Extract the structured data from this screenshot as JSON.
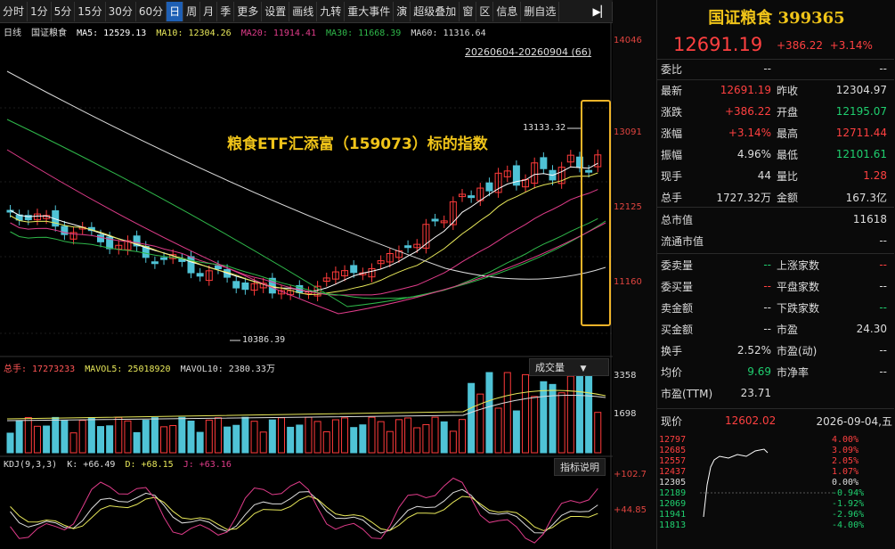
{
  "toolbar": {
    "items": [
      "分时",
      "1分",
      "5分",
      "15分",
      "30分",
      "60分",
      "日",
      "周",
      "月",
      "季",
      "更多",
      "设置",
      "画线",
      "九转",
      "重大事件",
      "演",
      "超级叠加",
      "窗",
      "区",
      "信息",
      "删自选",
      "▶▏"
    ],
    "active_index": 6
  },
  "main_chart": {
    "kline_label": "日线",
    "index_name": "国证粮食",
    "ma_labels": [
      "MA5: 12529.13",
      "MA10: 12304.26",
      "MA20: 11914.41",
      "MA30: 11668.39",
      "MA60: 11316.64"
    ],
    "ma_colors": [
      "#ffffff",
      "#e8e85a",
      "#e03c8a",
      "#2fb84a",
      "#d9d9d9"
    ],
    "date_range": "20260604-20260904 (66)",
    "price_axis": [
      "14046",
      "13091",
      "12125",
      "11160"
    ],
    "high_marker": "13133.32",
    "low_marker": "10386.39",
    "annotation": "粮食ETF汇添富（159073）标的指数",
    "up_color": "#ff3b3b",
    "down_color": "#4fc3d6",
    "highlight_color": "#f0b429"
  },
  "volume_panel": {
    "label_total": "总手: 17273233",
    "label_mavol5": "MAVOL5: 25018920",
    "label_mavol10": "MAVOL10: 2380.33万",
    "selector": "成交量",
    "axis": [
      "3358",
      "1698"
    ]
  },
  "kdj_panel": {
    "label": "KDJ(9,3,3)",
    "k": "K: +66.49",
    "d": "D: +68.15",
    "j": "J: +63.16",
    "button": "指标说明",
    "axis": [
      "+102.7",
      "+44.85"
    ]
  },
  "quote_panel": {
    "title": "国证粮食 399365",
    "price": "12691.19",
    "change": "+386.22",
    "change_pct": "+3.14%",
    "weibi_label": "委比",
    "weibi_value": "--",
    "weibi_value2": "--",
    "rows": [
      {
        "l1": "最新",
        "v1": "12691.19",
        "c1": "red",
        "l2": "昨收",
        "v2": "12304.97",
        "c2": "wht"
      },
      {
        "l1": "涨跌",
        "v1": "+386.22",
        "c1": "red",
        "l2": "开盘",
        "v2": "12195.07",
        "c2": "grn"
      },
      {
        "l1": "涨幅",
        "v1": "+3.14%",
        "c1": "red",
        "l2": "最高",
        "v2": "12711.44",
        "c2": "red"
      },
      {
        "l1": "振幅",
        "v1": "4.96%",
        "c1": "wht",
        "l2": "最低",
        "v2": "12101.61",
        "c2": "grn"
      },
      {
        "l1": "现手",
        "v1": "44",
        "c1": "wht",
        "l2": "量比",
        "v2": "1.28",
        "c2": "red"
      },
      {
        "l1": "总手",
        "v1": "1727.32万",
        "c1": "wht",
        "l2": "金额",
        "v2": "167.3亿",
        "c2": "wht"
      }
    ],
    "full_rows": [
      {
        "l": "总市值",
        "v": "11618"
      },
      {
        "l": "流通市值",
        "v": "--"
      }
    ],
    "rows2": [
      {
        "l1": "委卖量",
        "v1": "--",
        "c1": "grn",
        "l2": "上涨家数",
        "v2": "--",
        "c2": "red"
      },
      {
        "l1": "委买量",
        "v1": "--",
        "c1": "red",
        "l2": "平盘家数",
        "v2": "--",
        "c2": "wht"
      },
      {
        "l1": "卖金额",
        "v1": "--",
        "c1": "wht",
        "l2": "下跌家数",
        "v2": "--",
        "c2": "grn"
      },
      {
        "l1": "买金额",
        "v1": "--",
        "c1": "wht",
        "l2": "市盈",
        "v2": "24.30",
        "c2": "wht"
      },
      {
        "l1": "换手",
        "v1": "2.52%",
        "c1": "wht",
        "l2": "市盈(动)",
        "v2": "--",
        "c2": "wht"
      },
      {
        "l1": "均价",
        "v1": "9.69",
        "c1": "grn",
        "l2": "市净率",
        "v2": "--",
        "c2": "wht"
      },
      {
        "l1": "市盈(TTM)",
        "v1": "23.71",
        "c1": "wht",
        "l2": "",
        "v2": "",
        "c2": "wht"
      }
    ],
    "now_label": "现价",
    "now_value": "12602.02",
    "now_date": "2026-09-04,五"
  },
  "mini_chart": {
    "left_axis": [
      "12797",
      "12685",
      "12557",
      "12437",
      "12305",
      "12189",
      "12069",
      "11941",
      "11813"
    ],
    "right_axis": [
      "4.00%",
      "3.09%",
      "2.05%",
      "1.07%",
      "0.00%",
      "-0.94%",
      "-1.92%",
      "-2.96%",
      "-4.00%"
    ]
  }
}
